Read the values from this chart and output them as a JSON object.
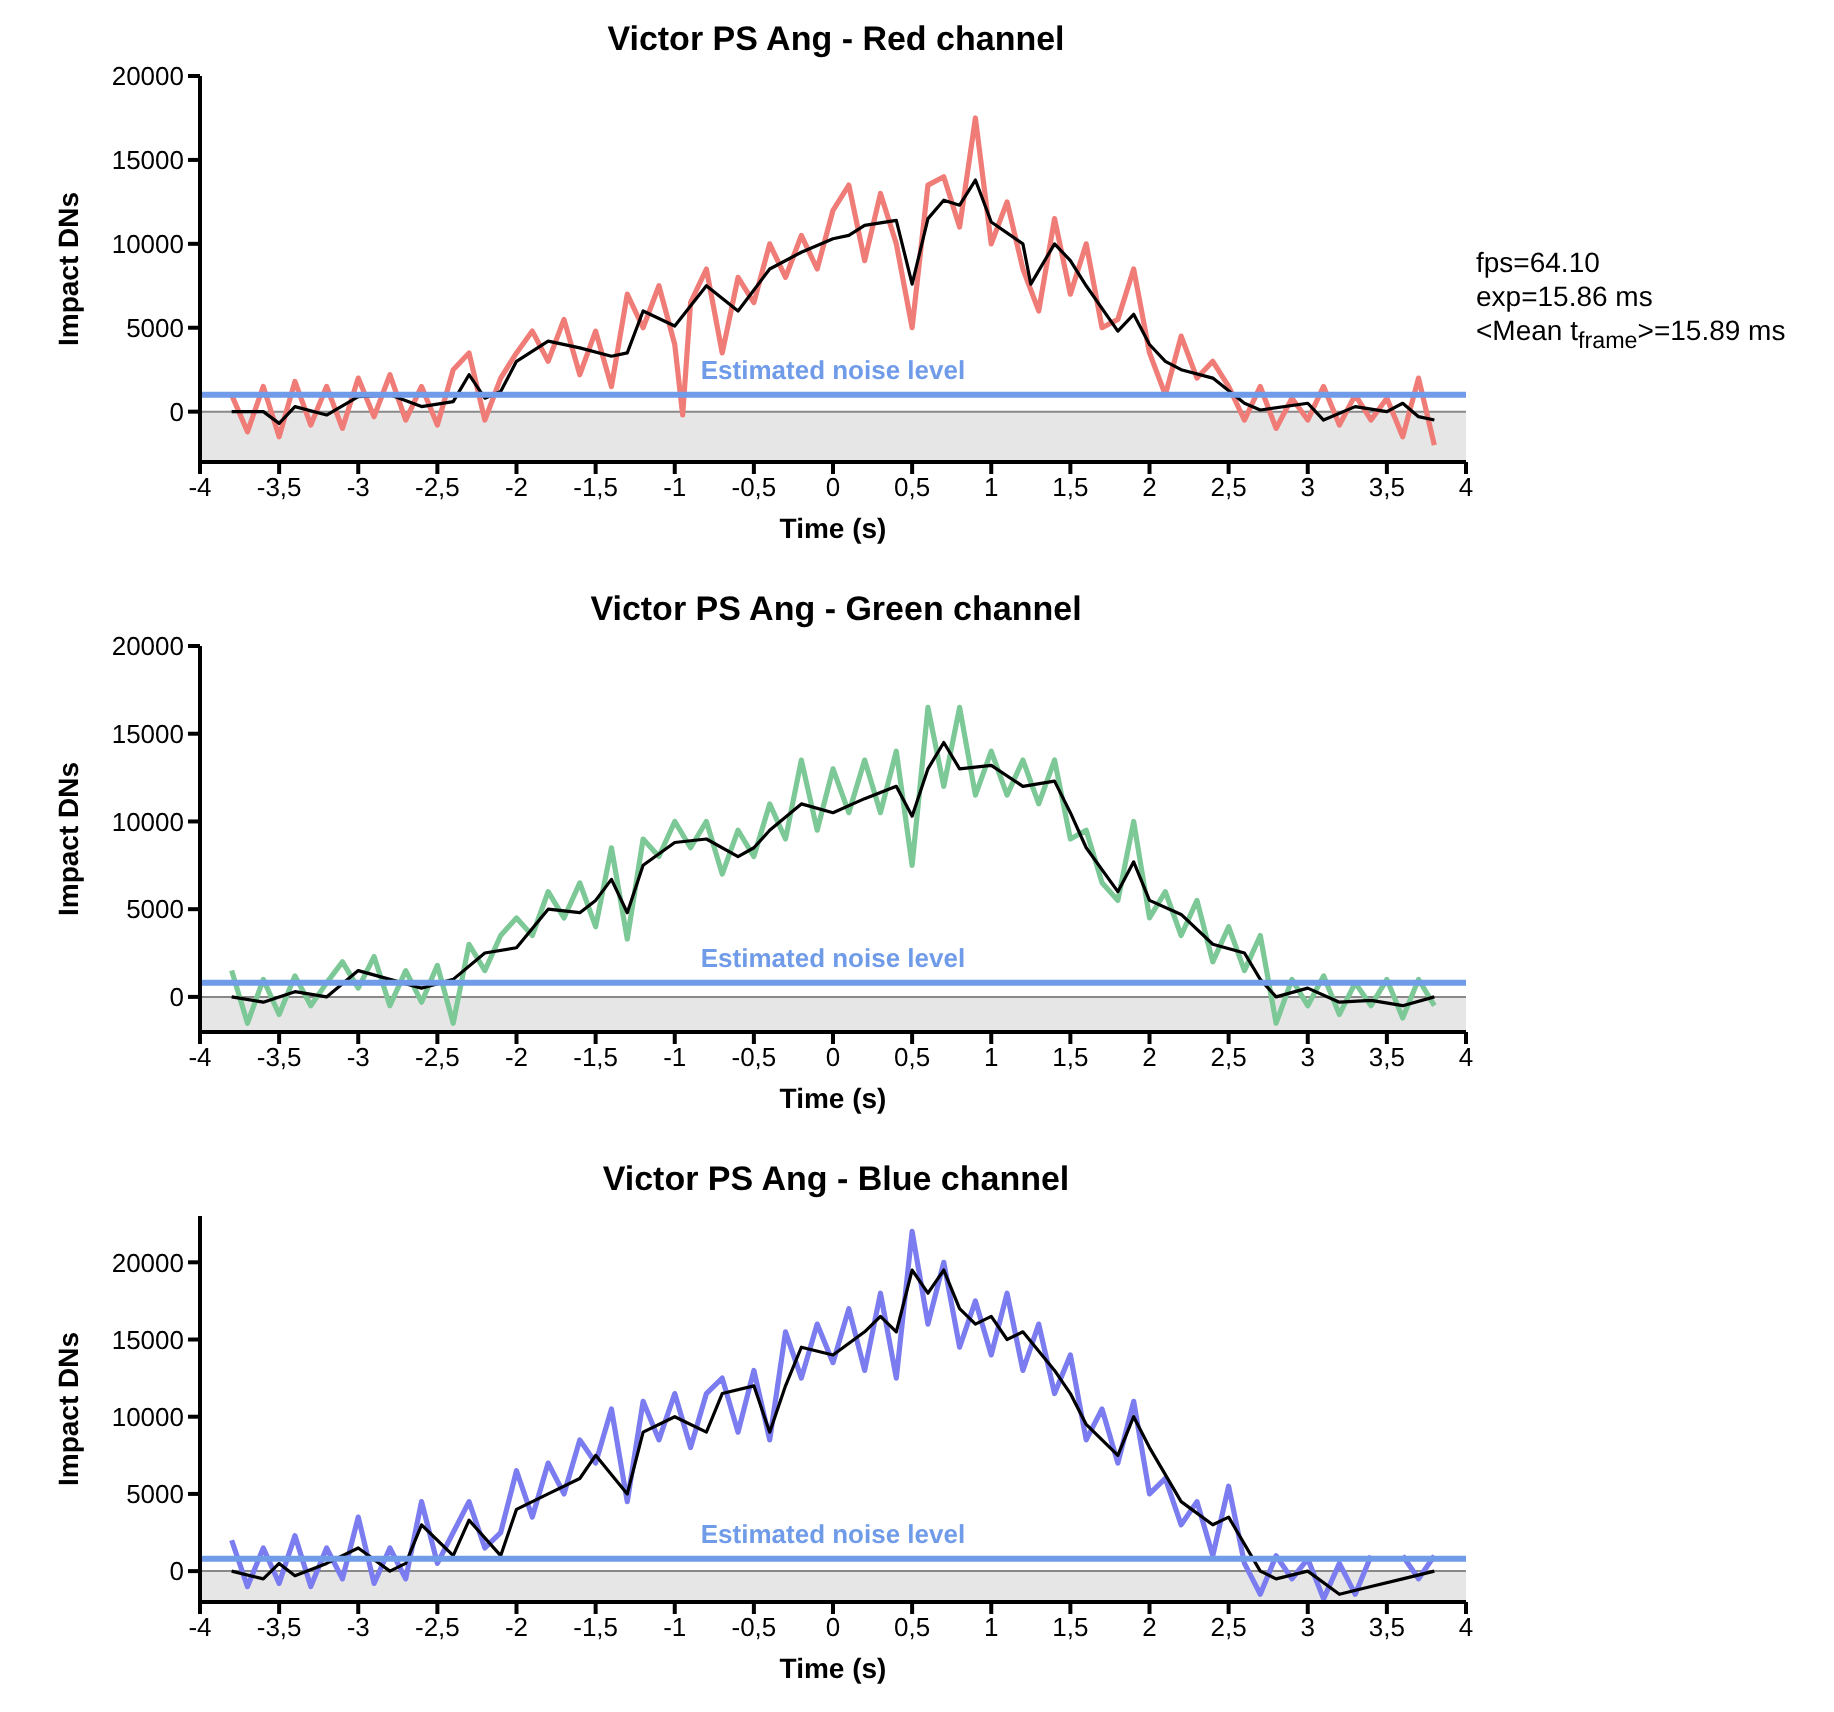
{
  "chart_data": [
    {
      "type": "line",
      "title": "Victor PS Ang - Red channel",
      "xlabel": "Time (s)",
      "ylabel": "Impact DNs",
      "xlim": [
        -4,
        4
      ],
      "ylim": [
        -3000,
        20000
      ],
      "xticks": [
        -4,
        {
          "value": -3.5,
          "label": "-3,5"
        },
        -3,
        {
          "value": -2.5,
          "label": "-2,5"
        },
        -2,
        {
          "value": -1.5,
          "label": "-1,5"
        },
        -1,
        {
          "value": -0.5,
          "label": "-0,5"
        },
        0,
        {
          "value": 0.5,
          "label": "0,5"
        },
        1,
        {
          "value": 1.5,
          "label": "1,5"
        },
        2,
        {
          "value": 2.5,
          "label": "2,5"
        },
        3,
        {
          "value": 3.5,
          "label": "3,5"
        },
        4
      ],
      "yticks": [
        0,
        5000,
        10000,
        15000,
        20000
      ],
      "annotations": [
        "fps=64.10",
        "exp=15.86 ms",
        "<Mean t$_{frame}$>=15.89 ms"
      ],
      "ref_lines": [
        {
          "axis": "y",
          "value": 1000,
          "label": "Estimated noise level",
          "color": "#6f9be8"
        }
      ],
      "bands": [
        {
          "axis": "y",
          "from": -3000,
          "to": 0,
          "color": "#e6e6e6"
        }
      ],
      "series": [
        {
          "color": "#f07c78",
          "x": [
            -3.8,
            -3.7,
            -3.6,
            -3.5,
            -3.4,
            -3.3,
            -3.2,
            -3.1,
            -3.0,
            -2.9,
            -2.8,
            -2.7,
            -2.6,
            -2.5,
            -2.4,
            -2.3,
            -2.2,
            -2.1,
            -2.0,
            -1.9,
            -1.8,
            -1.7,
            -1.6,
            -1.5,
            -1.4,
            -1.3,
            -1.2,
            -1.1,
            -1.0,
            -0.95,
            -0.9,
            -0.8,
            -0.7,
            -0.6,
            -0.5,
            -0.4,
            -0.3,
            -0.2,
            -0.1,
            0,
            0.1,
            0.2,
            0.3,
            0.4,
            0.5,
            0.6,
            0.7,
            0.8,
            0.9,
            1.0,
            1.1,
            1.2,
            1.3,
            1.4,
            1.5,
            1.6,
            1.7,
            1.8,
            1.9,
            2.0,
            2.1,
            2.2,
            2.3,
            2.4,
            2.5,
            2.6,
            2.7,
            2.8,
            2.9,
            3.0,
            3.1,
            3.2,
            3.3,
            3.4,
            3.5,
            3.6,
            3.7,
            3.8
          ],
          "values": [
            1000,
            -1200,
            1500,
            -1500,
            1800,
            -800,
            1500,
            -1000,
            2000,
            -300,
            2200,
            -500,
            1500,
            -800,
            2500,
            3500,
            -500,
            2000,
            3500,
            4800,
            3000,
            5500,
            2200,
            4800,
            1500,
            7000,
            5000,
            7500,
            4000,
            -200,
            6500,
            8500,
            3500,
            8000,
            6500,
            10000,
            8000,
            10500,
            8500,
            12000,
            13500,
            9000,
            13000,
            10000,
            5000,
            13500,
            14000,
            11000,
            17500,
            10000,
            12500,
            8500,
            6000,
            11500,
            7000,
            10000,
            5000,
            5500,
            8500,
            3500,
            1000,
            4500,
            2000,
            3000,
            1500,
            -500,
            1500,
            -1000,
            800,
            -500,
            1500,
            -800,
            1000,
            -500,
            800,
            -1500,
            2000,
            -2000
          ]
        },
        {
          "color": "#000000",
          "x": [
            -3.8,
            -3.6,
            -3.5,
            -3.4,
            -3.2,
            -3.0,
            -2.8,
            -2.6,
            -2.4,
            -2.3,
            -2.2,
            -2.1,
            -2.0,
            -1.8,
            -1.6,
            -1.4,
            -1.3,
            -1.2,
            -1.0,
            -0.8,
            -0.6,
            -0.4,
            -0.2,
            0.0,
            0.1,
            0.2,
            0.4,
            0.5,
            0.6,
            0.7,
            0.8,
            0.9,
            1.0,
            1.2,
            1.25,
            1.4,
            1.5,
            1.6,
            1.8,
            1.9,
            2.0,
            2.1,
            2.2,
            2.4,
            2.6,
            2.7,
            3.0,
            3.1,
            3.3,
            3.5,
            3.6,
            3.7,
            3.8
          ],
          "values": [
            0,
            0,
            -700,
            300,
            -200,
            900,
            1000,
            300,
            600,
            2200,
            800,
            1200,
            3000,
            4200,
            3800,
            3300,
            3500,
            6000,
            5100,
            7500,
            6000,
            8500,
            9500,
            10300,
            10500,
            11100,
            11400,
            7600,
            11500,
            12600,
            12300,
            13800,
            11300,
            10000,
            7600,
            10000,
            9000,
            7500,
            4800,
            5800,
            4000,
            3000,
            2500,
            2000,
            500,
            100,
            500,
            -500,
            300,
            0,
            500,
            -300,
            -500
          ]
        }
      ]
    },
    {
      "type": "line",
      "title": "Victor PS Ang - Green channel",
      "xlabel": "Time (s)",
      "ylabel": "Impact DNs",
      "xlim": [
        -4,
        4
      ],
      "ylim": [
        -2000,
        20000
      ],
      "xticks": [
        -4,
        {
          "value": -3.5,
          "label": "-3,5"
        },
        -3,
        {
          "value": -2.5,
          "label": "-2,5"
        },
        -2,
        {
          "value": -1.5,
          "label": "-1,5"
        },
        -1,
        {
          "value": -0.5,
          "label": "-0,5"
        },
        0,
        {
          "value": 0.5,
          "label": "0,5"
        },
        1,
        {
          "value": 1.5,
          "label": "1,5"
        },
        2,
        {
          "value": 2.5,
          "label": "2,5"
        },
        3,
        {
          "value": 3.5,
          "label": "3,5"
        },
        4
      ],
      "yticks": [
        0,
        5000,
        10000,
        15000,
        20000
      ],
      "ref_lines": [
        {
          "axis": "y",
          "value": 800,
          "label": "Estimated noise level",
          "color": "#6f9be8"
        }
      ],
      "bands": [
        {
          "axis": "y",
          "from": -2000,
          "to": 0,
          "color": "#e6e6e6"
        }
      ],
      "series": [
        {
          "color": "#7cc896",
          "x": [
            -3.8,
            -3.7,
            -3.6,
            -3.5,
            -3.4,
            -3.3,
            -3.2,
            -3.1,
            -3.0,
            -2.9,
            -2.8,
            -2.7,
            -2.6,
            -2.5,
            -2.4,
            -2.3,
            -2.2,
            -2.1,
            -2.0,
            -1.9,
            -1.8,
            -1.7,
            -1.6,
            -1.5,
            -1.4,
            -1.3,
            -1.2,
            -1.1,
            -1.0,
            -0.9,
            -0.8,
            -0.7,
            -0.6,
            -0.5,
            -0.4,
            -0.3,
            -0.2,
            -0.1,
            0,
            0.1,
            0.2,
            0.3,
            0.4,
            0.5,
            0.6,
            0.7,
            0.8,
            0.9,
            1.0,
            1.1,
            1.2,
            1.3,
            1.4,
            1.5,
            1.6,
            1.7,
            1.8,
            1.9,
            2.0,
            2.1,
            2.2,
            2.3,
            2.4,
            2.5,
            2.6,
            2.7,
            2.8,
            2.9,
            3.0,
            3.1,
            3.2,
            3.3,
            3.4,
            3.5,
            3.6,
            3.7,
            3.8
          ],
          "values": [
            1500,
            -1500,
            1000,
            -1000,
            1200,
            -500,
            800,
            2000,
            500,
            2300,
            -500,
            1500,
            -300,
            1800,
            -1500,
            3000,
            1500,
            3500,
            4500,
            3500,
            6000,
            4500,
            6500,
            4000,
            8500,
            3300,
            9000,
            8000,
            10000,
            8500,
            10000,
            7000,
            9500,
            8000,
            11000,
            9000,
            13500,
            9500,
            13000,
            10500,
            13500,
            10500,
            14000,
            7500,
            16500,
            12000,
            16500,
            11500,
            14000,
            11500,
            13500,
            11000,
            13500,
            9000,
            9500,
            6500,
            5500,
            10000,
            4500,
            6000,
            3500,
            5500,
            2000,
            4000,
            1500,
            3500,
            -1500,
            1000,
            -500,
            1200,
            -1000,
            800,
            -500,
            1000,
            -1200,
            1000,
            -500
          ]
        },
        {
          "color": "#000000",
          "x": [
            -3.8,
            -3.6,
            -3.4,
            -3.2,
            -3.0,
            -2.8,
            -2.6,
            -2.4,
            -2.2,
            -2.0,
            -1.8,
            -1.6,
            -1.5,
            -1.4,
            -1.3,
            -1.2,
            -1.0,
            -0.8,
            -0.6,
            -0.5,
            -0.4,
            -0.2,
            0.0,
            0.2,
            0.4,
            0.5,
            0.6,
            0.7,
            0.8,
            1.0,
            1.2,
            1.4,
            1.5,
            1.6,
            1.8,
            1.9,
            2.0,
            2.2,
            2.4,
            2.6,
            2.7,
            2.8,
            3.0,
            3.2,
            3.4,
            3.6,
            3.8
          ],
          "values": [
            0,
            -300,
            300,
            0,
            1500,
            1000,
            500,
            1000,
            2500,
            2800,
            5000,
            4800,
            5500,
            6700,
            4800,
            7500,
            8800,
            9000,
            8000,
            8500,
            9500,
            11000,
            10500,
            11300,
            12000,
            10300,
            13000,
            14500,
            13000,
            13200,
            12000,
            12300,
            10500,
            8500,
            6000,
            7700,
            5500,
            4700,
            3000,
            2500,
            1000,
            0,
            500,
            -300,
            -200,
            -500,
            0
          ]
        }
      ]
    },
    {
      "type": "line",
      "title": "Victor PS Ang - Blue channel",
      "xlabel": "Time (s)",
      "ylabel": "Impact DNs",
      "xlim": [
        -4,
        4
      ],
      "ylim": [
        -2000,
        23000
      ],
      "xticks": [
        -4,
        {
          "value": -3.5,
          "label": "-3,5"
        },
        -3,
        {
          "value": -2.5,
          "label": "-2,5"
        },
        -2,
        {
          "value": -1.5,
          "label": "-1,5"
        },
        -1,
        {
          "value": -0.5,
          "label": "-0,5"
        },
        0,
        {
          "value": 0.5,
          "label": "0,5"
        },
        1,
        {
          "value": 1.5,
          "label": "1,5"
        },
        2,
        {
          "value": 2.5,
          "label": "2,5"
        },
        3,
        {
          "value": 3.5,
          "label": "3,5"
        },
        4
      ],
      "yticks": [
        0,
        5000,
        10000,
        15000,
        20000
      ],
      "ref_lines": [
        {
          "axis": "y",
          "value": 800,
          "label": "Estimated noise level",
          "color": "#6f9be8"
        }
      ],
      "bands": [
        {
          "axis": "y",
          "from": -2000,
          "to": 0,
          "color": "#e6e6e6"
        }
      ],
      "series": [
        {
          "color": "#7b7cf0",
          "x": [
            -3.8,
            -3.7,
            -3.6,
            -3.5,
            -3.4,
            -3.3,
            -3.2,
            -3.1,
            -3.0,
            -2.9,
            -2.8,
            -2.7,
            -2.6,
            -2.5,
            -2.4,
            -2.3,
            -2.2,
            -2.1,
            -2.0,
            -1.9,
            -1.8,
            -1.7,
            -1.6,
            -1.5,
            -1.4,
            -1.3,
            -1.2,
            -1.1,
            -1.0,
            -0.9,
            -0.8,
            -0.7,
            -0.6,
            -0.5,
            -0.4,
            -0.3,
            -0.2,
            -0.1,
            0,
            0.1,
            0.2,
            0.3,
            0.4,
            0.5,
            0.6,
            0.7,
            0.8,
            0.9,
            1.0,
            1.1,
            1.2,
            1.3,
            1.4,
            1.5,
            1.6,
            1.7,
            1.8,
            1.9,
            2.0,
            2.1,
            2.2,
            2.3,
            2.4,
            2.5,
            2.6,
            2.7,
            2.8,
            2.9,
            3.0,
            3.1,
            3.2,
            3.3,
            3.4,
            3.5,
            3.6,
            3.7,
            3.8
          ],
          "values": [
            2000,
            -1000,
            1500,
            -800,
            2300,
            -1000,
            1500,
            -500,
            3500,
            -800,
            1500,
            -500,
            4500,
            500,
            2500,
            4500,
            1500,
            2500,
            6500,
            3500,
            7000,
            5000,
            8500,
            7000,
            10500,
            4500,
            11000,
            8500,
            11500,
            8000,
            11500,
            12500,
            9000,
            13000,
            8500,
            15500,
            12500,
            16000,
            13500,
            17000,
            13000,
            18000,
            12500,
            22000,
            16000,
            20000,
            14500,
            17500,
            14000,
            18000,
            13000,
            16000,
            11500,
            14000,
            8500,
            10500,
            7000,
            11000,
            5000,
            6000,
            3000,
            4500,
            1000,
            5500,
            500,
            -1500,
            1000,
            -500,
            800,
            -1800,
            500,
            -1500,
            1000,
            null,
            1000,
            -500,
            1000
          ]
        },
        {
          "color": "#000000",
          "x": [
            -3.8,
            -3.6,
            -3.5,
            -3.4,
            -3.2,
            -3.0,
            -2.8,
            -2.7,
            -2.6,
            -2.4,
            -2.3,
            -2.1,
            -2.0,
            -1.8,
            -1.6,
            -1.5,
            -1.3,
            -1.2,
            -1.0,
            -0.8,
            -0.7,
            -0.5,
            -0.4,
            -0.3,
            -0.2,
            0.0,
            0.2,
            0.3,
            0.4,
            0.5,
            0.6,
            0.7,
            0.8,
            0.9,
            1.0,
            1.1,
            1.2,
            1.4,
            1.5,
            1.6,
            1.8,
            1.9,
            2.0,
            2.2,
            2.4,
            2.5,
            2.7,
            2.8,
            3.0,
            3.2,
            3.4,
            3.6,
            3.8
          ],
          "values": [
            0,
            -500,
            500,
            -300,
            500,
            1500,
            0,
            500,
            3000,
            1000,
            3300,
            1000,
            4000,
            5000,
            6000,
            7500,
            5000,
            9000,
            10000,
            9000,
            11500,
            12000,
            9000,
            12000,
            14500,
            14000,
            15500,
            16500,
            15500,
            19500,
            18000,
            19500,
            17000,
            16000,
            16500,
            15000,
            15500,
            13000,
            11500,
            9500,
            7500,
            10000,
            8000,
            4500,
            3000,
            3500,
            0,
            -500,
            0,
            -1500,
            -1000,
            -500,
            0
          ]
        }
      ]
    }
  ]
}
